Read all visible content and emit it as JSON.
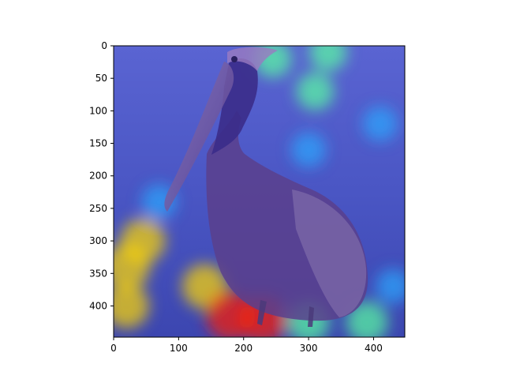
{
  "chart_data": {
    "type": "heatmap",
    "title": "",
    "xlabel": "",
    "ylabel": "",
    "xlim": [
      0,
      448
    ],
    "ylim": [
      448,
      0
    ],
    "x_ticks": [
      0,
      100,
      200,
      300,
      400
    ],
    "y_ticks": [
      0,
      50,
      100,
      150,
      200,
      250,
      300,
      350,
      400
    ],
    "x_tick_labels": [
      "0",
      "100",
      "200",
      "300",
      "400"
    ],
    "y_tick_labels": [
      "0",
      "50",
      "100",
      "150",
      "200",
      "250",
      "300",
      "350",
      "400"
    ],
    "grid": false,
    "legend": "none",
    "colormap": "jet",
    "overlay_alpha": 0.5,
    "heatmap_hotspots": [
      {
        "x": 20,
        "y": 340,
        "intensity": 0.85
      },
      {
        "x": 45,
        "y": 300,
        "intensity": 0.8
      },
      {
        "x": 20,
        "y": 400,
        "intensity": 0.8
      },
      {
        "x": 140,
        "y": 370,
        "intensity": 0.8
      },
      {
        "x": 180,
        "y": 415,
        "intensity": 0.95
      },
      {
        "x": 230,
        "y": 420,
        "intensity": 0.9
      },
      {
        "x": 300,
        "y": 425,
        "intensity": 0.7
      },
      {
        "x": 390,
        "y": 425,
        "intensity": 0.7
      },
      {
        "x": 310,
        "y": 70,
        "intensity": 0.55
      },
      {
        "x": 330,
        "y": 10,
        "intensity": 0.55
      },
      {
        "x": 245,
        "y": 20,
        "intensity": 0.55
      },
      {
        "x": 300,
        "y": 160,
        "intensity": 0.45
      },
      {
        "x": 410,
        "y": 120,
        "intensity": 0.45
      },
      {
        "x": 70,
        "y": 240,
        "intensity": 0.45
      },
      {
        "x": 430,
        "y": 370,
        "intensity": 0.45
      }
    ]
  },
  "colors": {
    "cold": "#0000b4",
    "cool": "#2aa8ff",
    "mid": "#5affa0",
    "warm": "#ffd800",
    "hot": "#ff2000",
    "bird_body": "#6a5098",
    "water": "#4650c8"
  }
}
